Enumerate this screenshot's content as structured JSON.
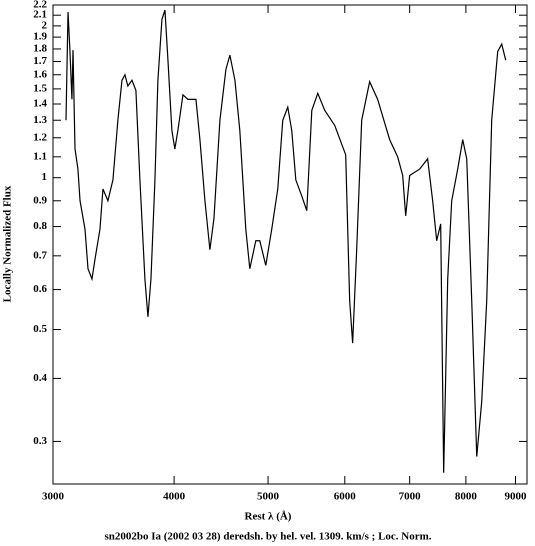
{
  "chart_data": {
    "type": "line",
    "xscale": "log",
    "yscale": "log",
    "xlabel": "Rest λ (Å)",
    "ylabel": "Locally Normalized Flux",
    "caption": "sn2002bo Ia (2002 03 28) deredsh. by hel. vel.  1309. km/s ;  Loc. Norm.",
    "xlim": [
      3000,
      9250
    ],
    "ylim": [
      0.247,
      2.2
    ],
    "xticks": [
      3000,
      4000,
      5000,
      6000,
      7000,
      8000,
      9000
    ],
    "yticks": [
      0.3,
      0.4,
      0.5,
      0.6,
      0.7,
      0.8,
      0.9,
      1,
      1.1,
      1.2,
      1.3,
      1.4,
      1.5,
      1.6,
      1.7,
      1.8,
      1.9,
      2,
      2.1,
      2.2
    ],
    "color": "#000000",
    "x": [
      3094,
      3109,
      3123,
      3138,
      3146,
      3161,
      3183,
      3199,
      3237,
      3260,
      3291,
      3315,
      3354,
      3378,
      3418,
      3459,
      3500,
      3534,
      3559,
      3584,
      3619,
      3653,
      3688,
      3732,
      3759,
      3786,
      3822,
      3849,
      3886,
      3914,
      3942,
      3979,
      4007,
      4036,
      4085,
      4133,
      4213,
      4253,
      4304,
      4355,
      4397,
      4460,
      4524,
      4567,
      4622,
      4676,
      4743,
      4788,
      4857,
      4903,
      4973,
      5044,
      5117,
      5178,
      5240,
      5290,
      5341,
      5417,
      5482,
      5548,
      5627,
      5721,
      5858,
      6013,
      6070,
      6113,
      6172,
      6246,
      6365,
      6487,
      6675,
      6803,
      6885,
      6934,
      7000,
      7168,
      7305,
      7393,
      7464,
      7535,
      7589,
      7662,
      7735,
      7846,
      7940,
      8016,
      8112,
      8209,
      8307,
      8406,
      8506,
      8628,
      8711,
      8794
    ],
    "values": [
      1.3,
      2.13,
      1.79,
      1.43,
      1.79,
      1.14,
      1.04,
      0.9,
      0.79,
      0.66,
      0.63,
      0.69,
      0.79,
      0.95,
      0.9,
      0.99,
      1.3,
      1.56,
      1.6,
      1.52,
      1.56,
      1.49,
      0.99,
      0.63,
      0.53,
      0.63,
      0.99,
      1.56,
      2.06,
      2.15,
      1.71,
      1.24,
      1.14,
      1.24,
      1.46,
      1.43,
      1.43,
      1.19,
      0.9,
      0.72,
      0.83,
      1.3,
      1.64,
      1.75,
      1.56,
      1.24,
      0.79,
      0.66,
      0.75,
      0.75,
      0.67,
      0.79,
      0.95,
      1.3,
      1.38,
      1.24,
      0.99,
      0.92,
      0.86,
      1.36,
      1.47,
      1.36,
      1.27,
      1.11,
      0.57,
      0.47,
      0.72,
      1.3,
      1.55,
      1.43,
      1.19,
      1.1,
      1.01,
      0.84,
      1.01,
      1.04,
      1.09,
      0.9,
      0.75,
      0.81,
      0.26,
      0.63,
      0.9,
      1.04,
      1.19,
      1.09,
      0.57,
      0.28,
      0.36,
      0.57,
      1.3,
      1.78,
      1.84,
      1.71
    ]
  }
}
